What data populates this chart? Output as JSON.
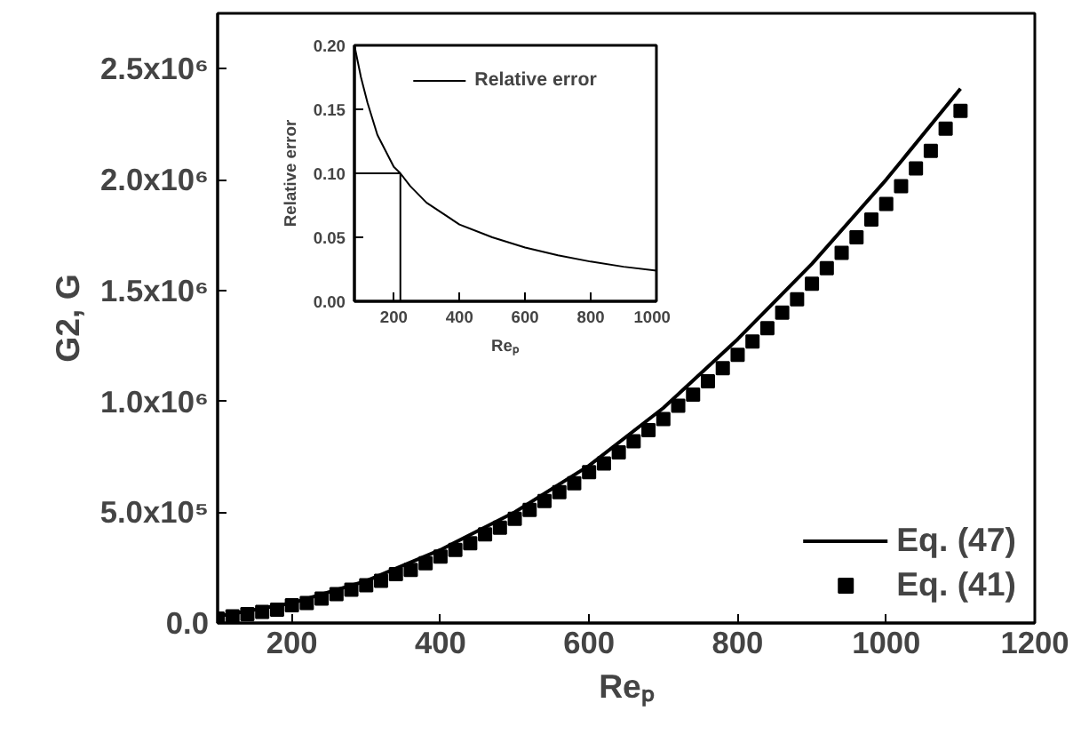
{
  "chart_data": [
    {
      "type": "line",
      "xlabel": "Reₚ",
      "ylabel": "G2, G",
      "xlim": [
        100,
        1200
      ],
      "ylim": [
        0,
        2750000
      ],
      "xticks": [
        200,
        400,
        600,
        800,
        1000,
        1200
      ],
      "yticks": [
        {
          "value": 0,
          "label": "0.0"
        },
        {
          "value": 500000,
          "label": "5.0x10⁵"
        },
        {
          "value": 1000000,
          "label": "1.0x10⁶"
        },
        {
          "value": 1500000,
          "label": "1.5x10⁶"
        },
        {
          "value": 2000000,
          "label": "2.0x10⁶"
        },
        {
          "value": 2500000,
          "label": "2.5x10⁶"
        }
      ],
      "legend": "bottom right",
      "grid": false,
      "series": [
        {
          "name": "Eq. (47)",
          "color": "#000000",
          "line_style": "solid",
          "x": [
            100,
            200,
            300,
            400,
            500,
            600,
            700,
            800,
            900,
            1000,
            1100
          ],
          "values": [
            30000,
            90000,
            190000,
            330000,
            500000,
            710000,
            970000,
            1280000,
            1620000,
            2000000,
            2410000
          ]
        },
        {
          "name": "Eq. (41)",
          "type": "scatter",
          "marker": "square",
          "color": "#000000",
          "x": [
            100,
            120,
            140,
            160,
            180,
            200,
            220,
            240,
            260,
            280,
            300,
            320,
            340,
            360,
            380,
            400,
            420,
            440,
            460,
            480,
            500,
            520,
            540,
            560,
            580,
            600,
            620,
            640,
            660,
            680,
            700,
            720,
            740,
            760,
            780,
            800,
            820,
            840,
            860,
            880,
            900,
            920,
            940,
            960,
            980,
            1000,
            1020,
            1040,
            1060,
            1080,
            1100
          ],
          "values": [
            20000,
            30000,
            40000,
            50000,
            60000,
            80000,
            90000,
            110000,
            130000,
            150000,
            170000,
            190000,
            220000,
            240000,
            270000,
            300000,
            330000,
            360000,
            400000,
            430000,
            470000,
            510000,
            550000,
            590000,
            630000,
            680000,
            720000,
            770000,
            820000,
            870000,
            920000,
            980000,
            1030000,
            1090000,
            1150000,
            1210000,
            1270000,
            1330000,
            1400000,
            1460000,
            1530000,
            1600000,
            1670000,
            1740000,
            1820000,
            1890000,
            1970000,
            2050000,
            2130000,
            2230000,
            2310000
          ]
        }
      ]
    },
    {
      "type": "line",
      "xlabel": "Reₚ",
      "ylabel": "Relative error",
      "xlim": [
        80,
        1000
      ],
      "ylim": [
        0,
        0.2
      ],
      "xticks": [
        200,
        400,
        600,
        800,
        1000
      ],
      "yticks": [
        {
          "value": 0,
          "label": "0.00"
        },
        {
          "value": 0.05,
          "label": "0.05"
        },
        {
          "value": 0.1,
          "label": "0.10"
        },
        {
          "value": 0.15,
          "label": "0.15"
        },
        {
          "value": 0.2,
          "label": "0.20"
        }
      ],
      "legend": "top",
      "grid": false,
      "ref_lines": [
        {
          "axis": "y",
          "value": 0.1,
          "color": "#000000"
        },
        {
          "axis": "x",
          "value": 220,
          "color": "#000000"
        }
      ],
      "series": [
        {
          "name": "Relative error",
          "color": "#000000",
          "line_style": "solid",
          "x": [
            80,
            100,
            120,
            150,
            200,
            220,
            250,
            300,
            400,
            500,
            600,
            700,
            800,
            900,
            1000
          ],
          "values": [
            0.2,
            0.175,
            0.155,
            0.13,
            0.105,
            0.1,
            0.09,
            0.077,
            0.06,
            0.05,
            0.042,
            0.036,
            0.031,
            0.027,
            0.024
          ]
        }
      ]
    }
  ]
}
